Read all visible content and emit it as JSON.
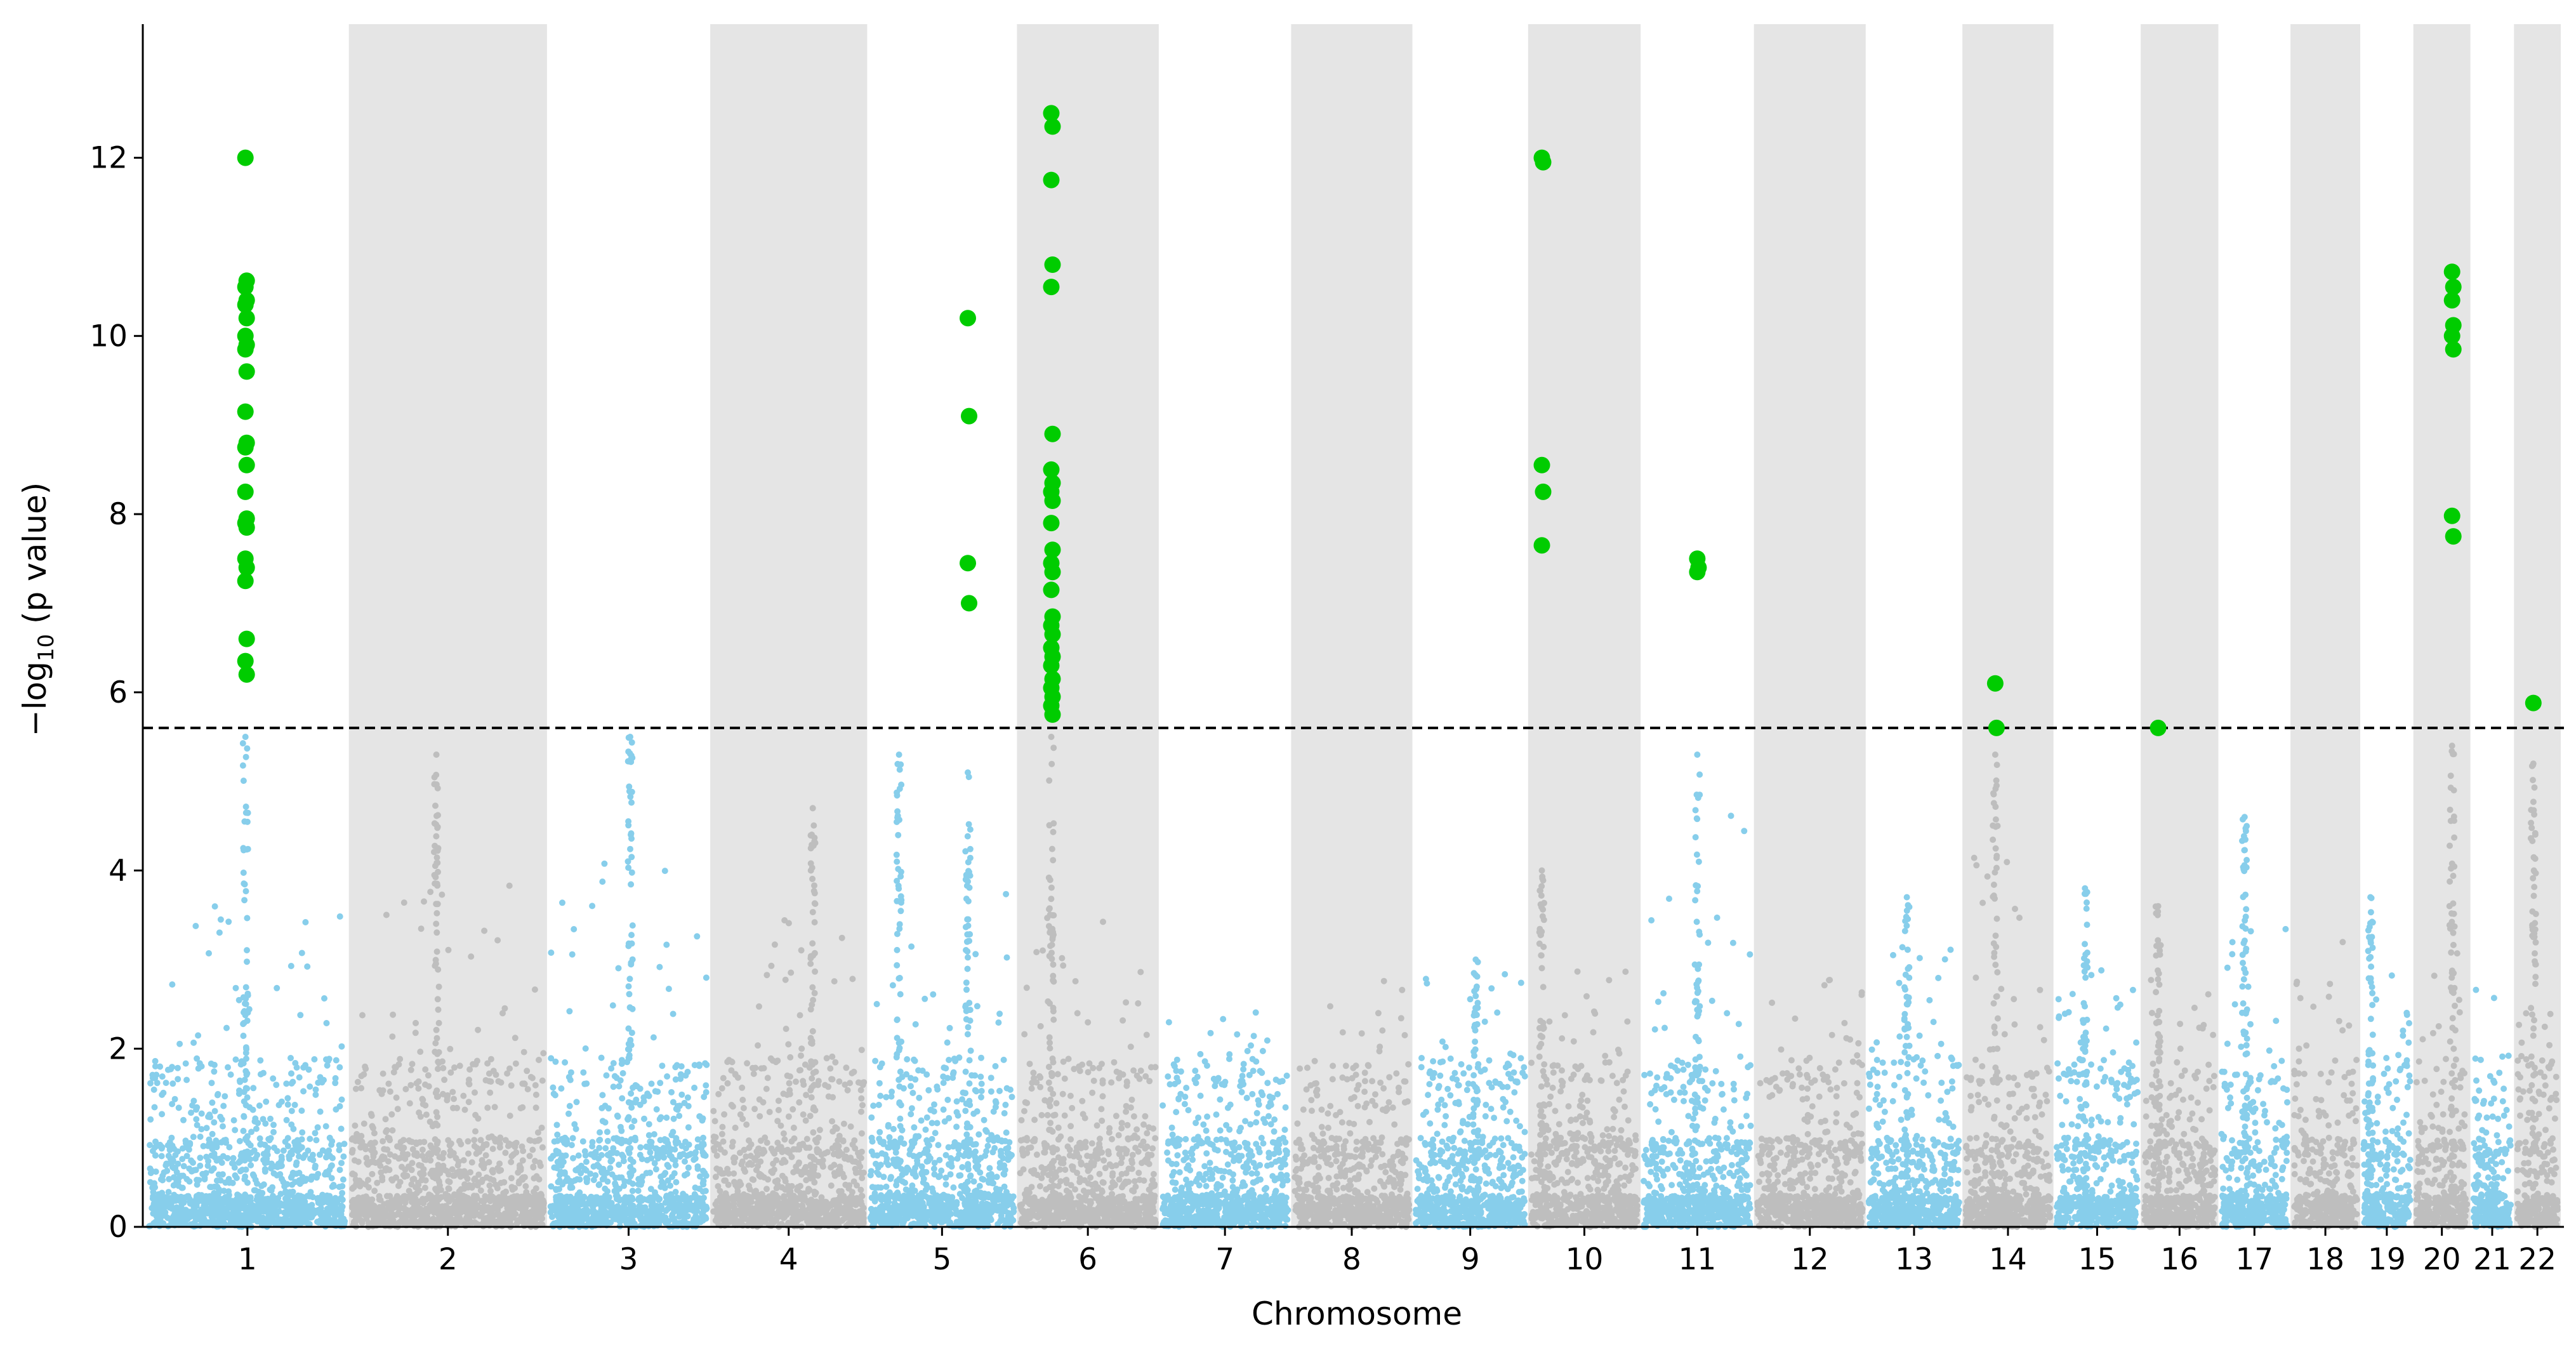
{
  "chart_data": {
    "type": "scatter",
    "subtype": "manhattan",
    "title": "",
    "xlabel": "Chromosome",
    "ylabel_prefix": "−log",
    "ylabel_subscript": "10",
    "ylabel_suffix": " (p value)",
    "ylim": [
      0,
      13.5
    ],
    "yticks": [
      0,
      2,
      4,
      6,
      8,
      10,
      12
    ],
    "threshold": 5.6,
    "grid": false,
    "colors": {
      "odd": "#87ceeb",
      "even": "#bebebe",
      "significant": "#00cc00",
      "band": "#e5e5e5",
      "threshold_line": "#000000"
    },
    "chromosomes": [
      {
        "label": "1",
        "length": 248,
        "peaks": [
          {
            "pos": 0.49,
            "h": 5.5
          }
        ],
        "max_bg": 3.7
      },
      {
        "label": "2",
        "length": 242,
        "peaks": [
          {
            "pos": 0.44,
            "h": 5.3
          }
        ],
        "max_bg": 4.0
      },
      {
        "label": "3",
        "length": 198,
        "peaks": [
          {
            "pos": 0.51,
            "h": 5.5
          }
        ],
        "max_bg": 4.1
      },
      {
        "label": "4",
        "length": 190,
        "peaks": [
          {
            "pos": 0.66,
            "h": 4.7
          }
        ],
        "max_bg": 3.8
      },
      {
        "label": "5",
        "length": 181,
        "peaks": [
          {
            "pos": 0.68,
            "h": 5.1
          },
          {
            "pos": 0.2,
            "h": 5.3
          }
        ],
        "max_bg": 3.8
      },
      {
        "label": "6",
        "length": 171,
        "peaks": [
          {
            "pos": 0.23,
            "h": 5.5
          }
        ],
        "max_bg": 3.5
      },
      {
        "label": "7",
        "length": 159,
        "peaks": [],
        "max_bg": 2.5
      },
      {
        "label": "8",
        "length": 145,
        "peaks": [],
        "max_bg": 2.8
      },
      {
        "label": "9",
        "length": 138,
        "peaks": [
          {
            "pos": 0.55,
            "h": 3.0
          }
        ],
        "max_bg": 3.0
      },
      {
        "label": "10",
        "length": 134,
        "peaks": [
          {
            "pos": 0.1,
            "h": 4.0
          }
        ],
        "max_bg": 2.9
      },
      {
        "label": "11",
        "length": 135,
        "peaks": [
          {
            "pos": 0.5,
            "h": 5.3
          }
        ],
        "max_bg": 4.7
      },
      {
        "label": "12",
        "length": 133,
        "peaks": [],
        "max_bg": 2.9
      },
      {
        "label": "13",
        "length": 114,
        "peaks": [
          {
            "pos": 0.42,
            "h": 3.7
          }
        ],
        "max_bg": 3.5
      },
      {
        "label": "14",
        "length": 107,
        "peaks": [
          {
            "pos": 0.35,
            "h": 5.3
          }
        ],
        "max_bg": 4.3
      },
      {
        "label": "15",
        "length": 102,
        "peaks": [
          {
            "pos": 0.35,
            "h": 3.8
          }
        ],
        "max_bg": 3.0
      },
      {
        "label": "16",
        "length": 90,
        "peaks": [
          {
            "pos": 0.2,
            "h": 3.6
          }
        ],
        "max_bg": 3.2
      },
      {
        "label": "17",
        "length": 83,
        "peaks": [
          {
            "pos": 0.35,
            "h": 4.6
          }
        ],
        "max_bg": 3.5
      },
      {
        "label": "18",
        "length": 80,
        "peaks": [],
        "max_bg": 3.3
      },
      {
        "label": "19",
        "length": 59,
        "peaks": [
          {
            "pos": 0.15,
            "h": 3.7
          }
        ],
        "max_bg": 3.4
      },
      {
        "label": "20",
        "length": 64,
        "peaks": [
          {
            "pos": 0.7,
            "h": 5.4
          }
        ],
        "max_bg": 3.3
      },
      {
        "label": "21",
        "length": 47,
        "peaks": [],
        "max_bg": 3.1
      },
      {
        "label": "22",
        "length": 51,
        "peaks": [
          {
            "pos": 0.4,
            "h": 5.2
          }
        ],
        "max_bg": 2.5
      }
    ],
    "significant_points": [
      {
        "chr": "1",
        "pos": 0.49,
        "values": [
          12.0,
          10.62,
          10.55,
          10.4,
          10.35,
          10.2,
          10.0,
          9.9,
          9.85,
          9.6,
          9.15,
          8.8,
          8.75,
          8.55,
          8.25,
          7.95,
          7.9,
          7.85,
          7.5,
          7.4,
          7.25,
          6.6,
          6.35,
          6.2
        ]
      },
      {
        "chr": "5",
        "pos": 0.68,
        "values": [
          10.2,
          9.1,
          7.45,
          7.0
        ]
      },
      {
        "chr": "6",
        "pos": 0.23,
        "values": [
          12.5,
          12.35,
          11.75,
          10.8,
          10.55,
          8.9,
          8.5,
          8.35,
          8.25,
          8.15,
          7.9,
          7.6,
          7.45,
          7.35,
          7.15,
          6.85,
          6.75,
          6.65,
          6.5,
          6.4,
          6.3,
          6.15,
          6.05,
          5.95,
          5.85,
          5.75
        ]
      },
      {
        "chr": "10",
        "pos": 0.1,
        "values": [
          12.0,
          11.95,
          8.55,
          8.25,
          7.65
        ]
      },
      {
        "chr": "11",
        "pos": 0.5,
        "values": [
          7.5,
          7.4,
          7.35
        ]
      },
      {
        "chr": "14",
        "pos": 0.35,
        "values": [
          6.1,
          5.6
        ]
      },
      {
        "chr": "16",
        "pos": 0.2,
        "values": [
          5.6
        ]
      },
      {
        "chr": "20",
        "pos": 0.7,
        "values": [
          10.72,
          10.55,
          10.4,
          10.12,
          10.0,
          9.85,
          7.98,
          7.75
        ]
      },
      {
        "chr": "22",
        "pos": 0.4,
        "values": [
          5.88
        ]
      }
    ]
  }
}
